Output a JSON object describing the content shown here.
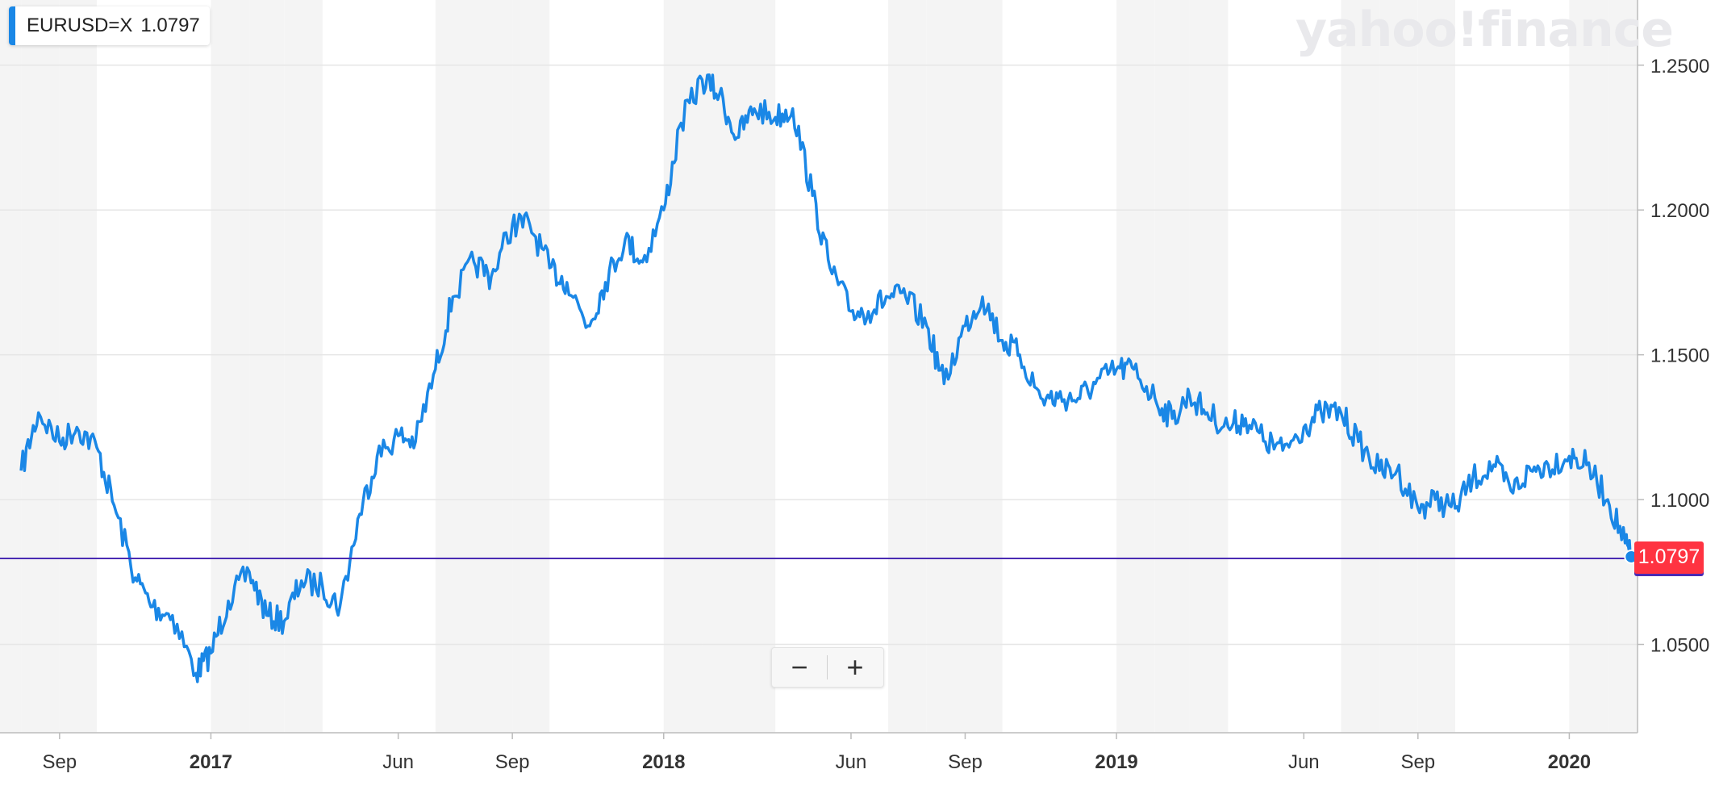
{
  "watermark": "yahoo!finance",
  "legend": {
    "symbol": "EURUSD=X",
    "price": "1.0797"
  },
  "zoom": {
    "minus": "−",
    "plus": "+"
  },
  "last_price_tag": "1.0797",
  "colors": {
    "line": "#1a87e6",
    "price_line": "#4a2bb3",
    "price_tag": "#ff3341",
    "grid": "#e6e6e6",
    "band": "#f4f4f4"
  },
  "chart_data": {
    "type": "line",
    "series": [
      {
        "name": "EURUSD=X",
        "x": [
          "2016-08-01",
          "2016-08-15",
          "2016-09-01",
          "2016-09-15",
          "2016-10-01",
          "2016-10-15",
          "2016-11-01",
          "2016-11-15",
          "2016-12-01",
          "2016-12-20",
          "2017-01-01",
          "2017-01-15",
          "2017-02-01",
          "2017-02-15",
          "2017-03-01",
          "2017-03-15",
          "2017-04-01",
          "2017-04-15",
          "2017-05-01",
          "2017-05-15",
          "2017-06-01",
          "2017-06-15",
          "2017-07-01",
          "2017-07-15",
          "2017-08-01",
          "2017-08-15",
          "2017-09-01",
          "2017-09-15",
          "2017-10-01",
          "2017-10-15",
          "2017-11-01",
          "2017-11-15",
          "2017-12-01",
          "2017-12-15",
          "2018-01-01",
          "2018-01-15",
          "2018-02-01",
          "2018-02-15",
          "2018-03-01",
          "2018-03-15",
          "2018-04-01",
          "2018-04-15",
          "2018-05-01",
          "2018-05-15",
          "2018-06-01",
          "2018-06-15",
          "2018-07-01",
          "2018-07-15",
          "2018-08-01",
          "2018-08-15",
          "2018-09-01",
          "2018-09-15",
          "2018-10-01",
          "2018-10-15",
          "2018-11-01",
          "2018-11-15",
          "2018-12-01",
          "2018-12-15",
          "2019-01-01",
          "2019-01-15",
          "2019-02-01",
          "2019-02-15",
          "2019-03-01",
          "2019-03-15",
          "2019-04-01",
          "2019-04-15",
          "2019-05-01",
          "2019-05-15",
          "2019-06-01",
          "2019-06-15",
          "2019-07-01",
          "2019-07-15",
          "2019-08-01",
          "2019-08-15",
          "2019-09-01",
          "2019-09-15",
          "2019-10-01",
          "2019-10-15",
          "2019-11-01",
          "2019-11-15",
          "2019-12-01",
          "2019-12-15",
          "2020-01-01",
          "2020-01-15",
          "2020-02-01",
          "2020-02-15",
          "2020-02-20"
        ],
        "values": [
          1.11,
          1.13,
          1.12,
          1.125,
          1.118,
          1.098,
          1.073,
          1.063,
          1.06,
          1.04,
          1.047,
          1.065,
          1.075,
          1.06,
          1.058,
          1.072,
          1.07,
          1.063,
          1.095,
          1.115,
          1.122,
          1.12,
          1.145,
          1.17,
          1.182,
          1.177,
          1.195,
          1.195,
          1.18,
          1.175,
          1.16,
          1.175,
          1.19,
          1.182,
          1.2,
          1.23,
          1.245,
          1.24,
          1.225,
          1.235,
          1.232,
          1.235,
          1.205,
          1.18,
          1.165,
          1.165,
          1.17,
          1.17,
          1.16,
          1.14,
          1.16,
          1.17,
          1.155,
          1.15,
          1.135,
          1.135,
          1.135,
          1.14,
          1.145,
          1.145,
          1.135,
          1.128,
          1.136,
          1.13,
          1.125,
          1.128,
          1.12,
          1.117,
          1.125,
          1.13,
          1.13,
          1.12,
          1.11,
          1.11,
          1.097,
          1.1,
          1.097,
          1.107,
          1.112,
          1.103,
          1.11,
          1.112,
          1.115,
          1.112,
          1.1,
          1.085,
          1.0797
        ]
      }
    ],
    "x_ticks": [
      "Sep",
      "2017",
      "Jun",
      "Sep",
      "2018",
      "Jun",
      "Sep",
      "2019",
      "Jun",
      "Sep",
      "2020"
    ],
    "x_tick_dates": [
      "2016-09-01",
      "2017-01-01",
      "2017-06-01",
      "2017-09-01",
      "2018-01-01",
      "2018-06-01",
      "2018-09-01",
      "2019-01-01",
      "2019-06-01",
      "2019-09-01",
      "2020-01-01"
    ],
    "y_ticks": [
      "1.2500",
      "1.2000",
      "1.1500",
      "1.1000",
      "1.0500"
    ],
    "ylim": [
      1.0195,
      1.2725
    ],
    "xlim": [
      "2016-07-15",
      "2020-02-25"
    ],
    "grid": true,
    "last_value": 1.0797
  }
}
